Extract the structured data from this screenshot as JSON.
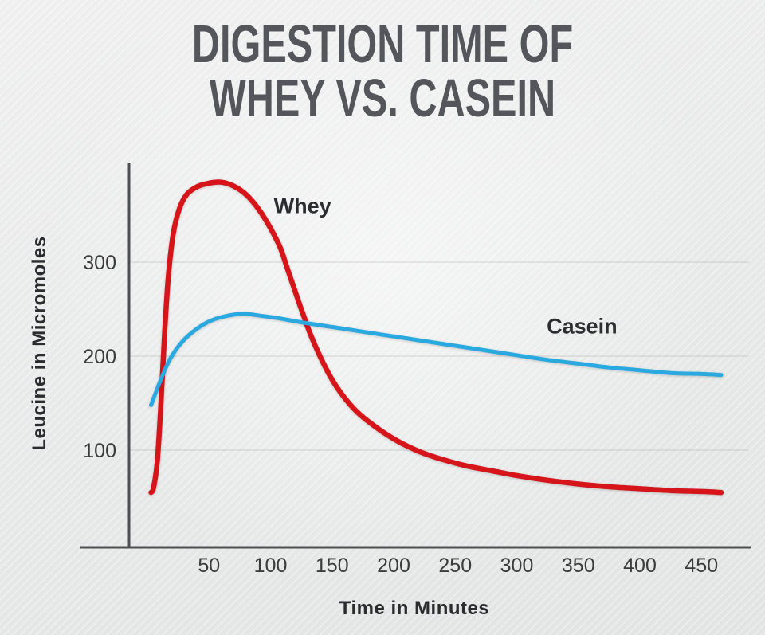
{
  "page": {
    "title_line1": "DIGESTION TIME OF",
    "title_line2": "WHEY VS. CASEIN"
  },
  "colors": {
    "whey": "#d6151b",
    "casein": "#2aa9e0",
    "axis": "#4d4e50",
    "tick_text": "#3b3b3c",
    "series_label_text": "#2c2d30",
    "title_text": "#54565b",
    "grid": "rgba(110,110,110,0.12)"
  },
  "chart_data": {
    "type": "line",
    "title": "Digestion Time of Whey vs. Casein",
    "xlabel": "Time in Minutes",
    "ylabel": "Leucine in Micromoles",
    "xlim": [
      0,
      470
    ],
    "ylim": [
      0,
      400
    ],
    "x_ticks": [
      50,
      100,
      150,
      200,
      250,
      300,
      350,
      400,
      450
    ],
    "y_ticks": [
      100,
      200,
      300
    ],
    "grid": "faint horizontal lines at y ticks",
    "legend": "inline labels next to curves",
    "series": [
      {
        "name": "Whey",
        "color": "#d6151b",
        "stroke_width": 6.5,
        "label_pos": {
          "x": 126,
          "y": 352
        },
        "points": [
          [
            3,
            55
          ],
          [
            5,
            60
          ],
          [
            8,
            88
          ],
          [
            11,
            150
          ],
          [
            14,
            225
          ],
          [
            17,
            285
          ],
          [
            21,
            330
          ],
          [
            26,
            357
          ],
          [
            32,
            372
          ],
          [
            40,
            380
          ],
          [
            50,
            384
          ],
          [
            60,
            385
          ],
          [
            70,
            381
          ],
          [
            80,
            372
          ],
          [
            90,
            357
          ],
          [
            100,
            336
          ],
          [
            108,
            315
          ],
          [
            115,
            288
          ],
          [
            125,
            250
          ],
          [
            135,
            215
          ],
          [
            150,
            175
          ],
          [
            165,
            148
          ],
          [
            180,
            130
          ],
          [
            200,
            112
          ],
          [
            220,
            99
          ],
          [
            240,
            90
          ],
          [
            260,
            83
          ],
          [
            280,
            78
          ],
          [
            300,
            73
          ],
          [
            325,
            68
          ],
          [
            350,
            64
          ],
          [
            375,
            61
          ],
          [
            400,
            59
          ],
          [
            425,
            57
          ],
          [
            450,
            56
          ],
          [
            466,
            55
          ]
        ]
      },
      {
        "name": "Casein",
        "color": "#2aa9e0",
        "stroke_width": 5,
        "label_pos": {
          "x": 353,
          "y": 224
        },
        "points": [
          [
            3,
            148
          ],
          [
            10,
            172
          ],
          [
            18,
            196
          ],
          [
            28,
            215
          ],
          [
            40,
            229
          ],
          [
            52,
            238
          ],
          [
            65,
            243
          ],
          [
            78,
            245
          ],
          [
            92,
            243
          ],
          [
            108,
            240
          ],
          [
            125,
            236
          ],
          [
            150,
            231
          ],
          [
            175,
            226
          ],
          [
            200,
            221
          ],
          [
            225,
            216
          ],
          [
            250,
            211
          ],
          [
            275,
            206
          ],
          [
            300,
            201
          ],
          [
            325,
            196
          ],
          [
            350,
            192
          ],
          [
            375,
            188
          ],
          [
            400,
            185
          ],
          [
            425,
            182
          ],
          [
            450,
            181
          ],
          [
            466,
            180
          ]
        ]
      }
    ]
  }
}
